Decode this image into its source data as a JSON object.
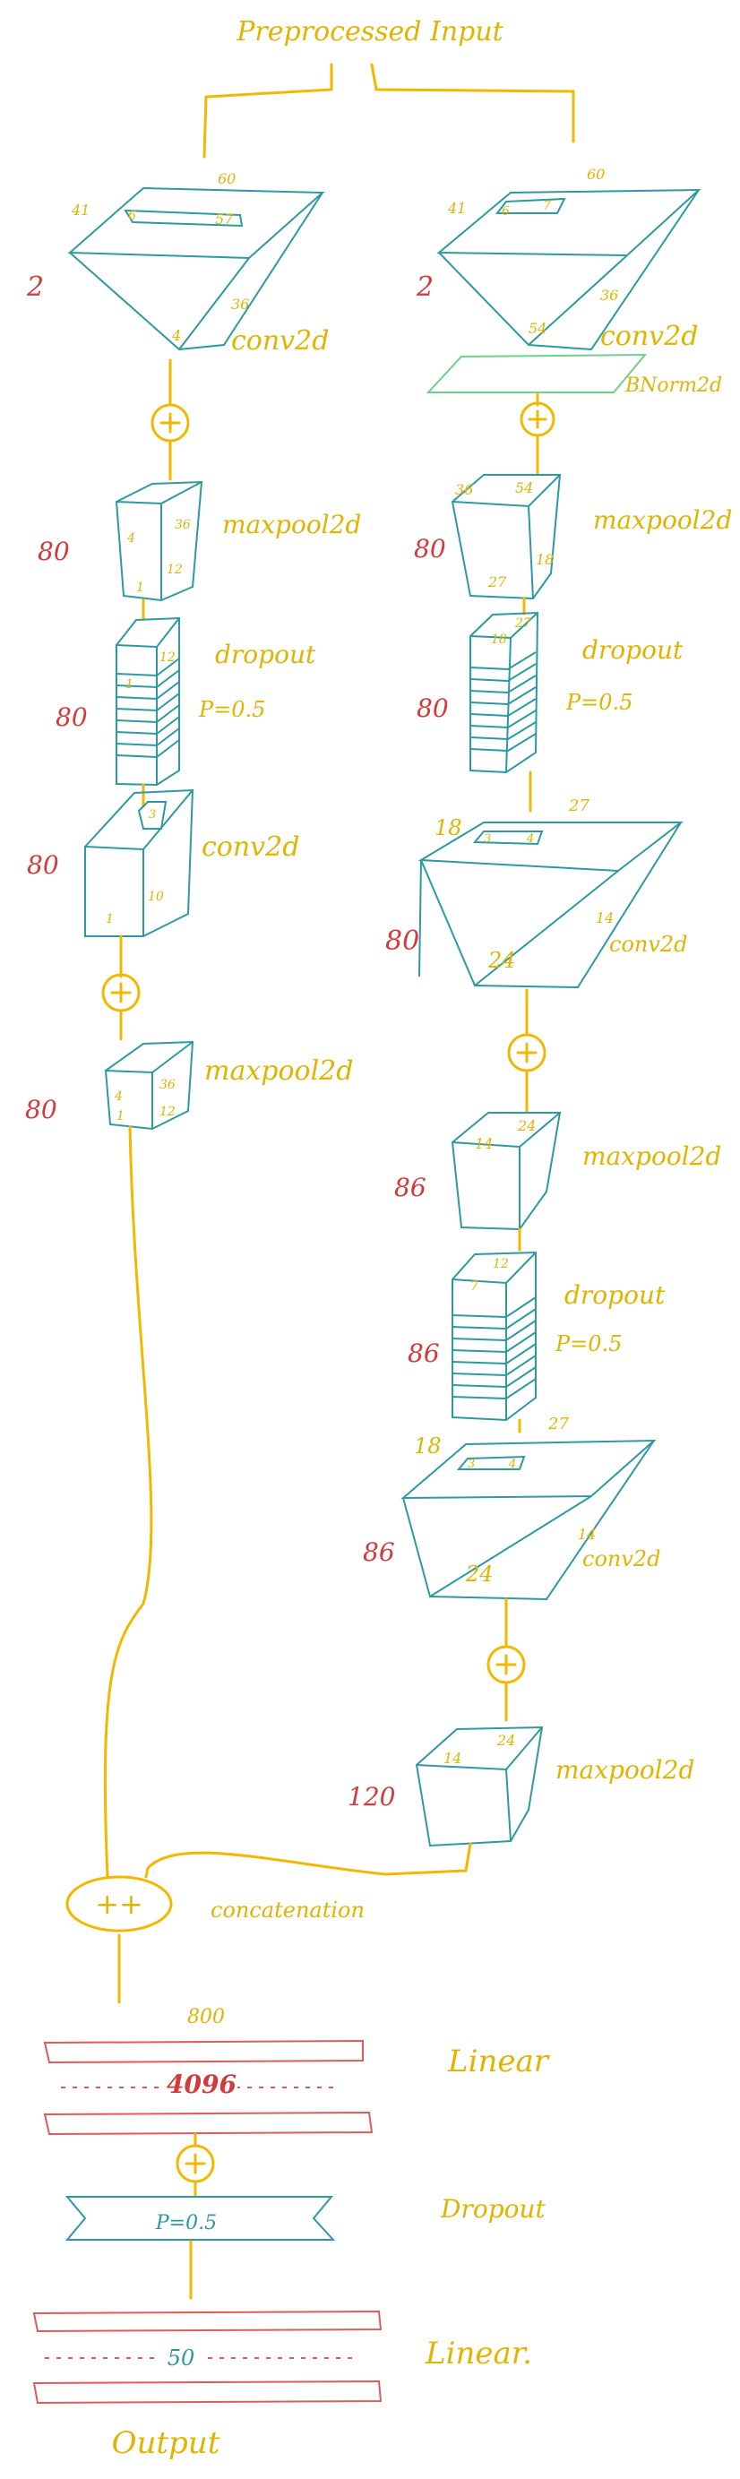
{
  "title": "Preprocessed Input",
  "left_branch": {
    "conv1": {
      "layer": "conv2d",
      "channels": "2",
      "dims": [
        "60",
        "41",
        "6",
        "57",
        "36",
        "4"
      ]
    },
    "pool1": {
      "layer": "maxpool2d",
      "channels": "80",
      "dims": [
        "4",
        "36",
        "12",
        "1"
      ]
    },
    "drop1": {
      "layer": "dropout",
      "param": "P=0.5",
      "channels": "80",
      "dims": [
        "1",
        "12"
      ]
    },
    "conv2": {
      "layer": "conv2d",
      "channels": "80",
      "dims": [
        "3",
        "10",
        "1"
      ]
    },
    "pool2": {
      "layer": "maxpool2d",
      "channels": "80",
      "dims": [
        "4",
        "36",
        "1",
        "12"
      ]
    }
  },
  "right_branch": {
    "conv1": {
      "layer": "conv2d",
      "channels": "2",
      "dims": [
        "60",
        "41",
        "6",
        "7",
        "36",
        "54"
      ]
    },
    "bnorm": {
      "layer": "BNorm2d"
    },
    "pool1": {
      "layer": "maxpool2d",
      "channels": "80",
      "dims": [
        "36",
        "54",
        "27",
        "18"
      ]
    },
    "drop1": {
      "layer": "dropout",
      "param": "P=0.5",
      "channels": "80",
      "dims": [
        "18",
        "27"
      ]
    },
    "conv2": {
      "layer": "conv2d",
      "channels": "80",
      "dims": [
        "18",
        "27",
        "3",
        "4",
        "14",
        "24"
      ]
    },
    "pool2": {
      "layer": "maxpool2d",
      "channels": "86",
      "dims": [
        "14",
        "24"
      ]
    },
    "drop2": {
      "layer": "dropout",
      "param": "P=0.5",
      "channels": "86",
      "dims": [
        "7",
        "12"
      ]
    },
    "conv3": {
      "layer": "conv2d",
      "channels": "86",
      "dims": [
        "18",
        "27",
        "3",
        "4",
        "14",
        "24"
      ]
    },
    "pool3": {
      "layer": "maxpool2d",
      "channels": "120",
      "dims": [
        "14",
        "24"
      ]
    }
  },
  "concat": {
    "symbol": "++",
    "label": "concatenation"
  },
  "linear1": {
    "label": "Linear",
    "in": "800",
    "out": "4096"
  },
  "dropout_final": {
    "label": "Dropout",
    "param": "P=0.5"
  },
  "linear2": {
    "label": "Linear.",
    "out": "50"
  },
  "output": "Output",
  "activation_symbol": "⊕",
  "colors": {
    "flow": "#f2b800",
    "tensor": "#2c9aa0",
    "linear": "#e05a5a",
    "channels": "#d23b3b",
    "bnorm": "#6dd18a"
  }
}
